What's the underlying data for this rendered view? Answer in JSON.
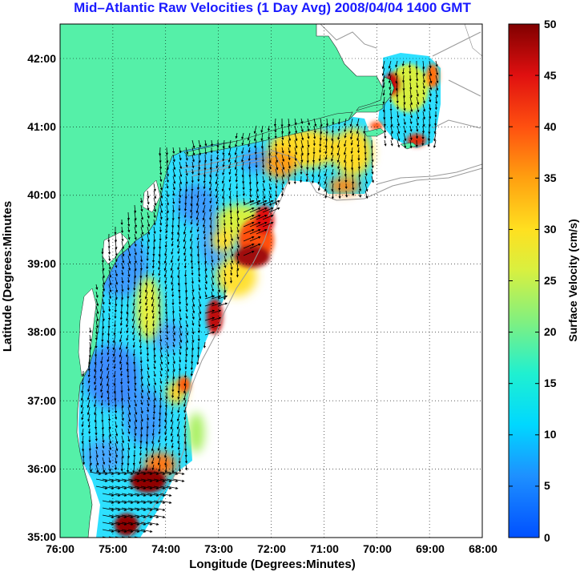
{
  "title": "Mid–Atlantic Raw Velocities (1 Day Avg) 2008/04/04 1400 GMT",
  "map": {
    "xlabel": "Longitude (Degrees:Minutes)",
    "ylabel": "Latitude (Degrees:Minutes",
    "x_ticks": [
      "76:00",
      "75:00",
      "74:00",
      "73:00",
      "72:00",
      "71:00",
      "70:00",
      "69:00",
      "68:00"
    ],
    "y_ticks": [
      "42:00",
      "41:00",
      "40:00",
      "39:00",
      "38:00",
      "37:00",
      "36:00",
      "35:00"
    ],
    "land_color": "#55f0a8",
    "ocean_color": "#ffffff",
    "grid": "dotted"
  },
  "colorbar": {
    "label": "Surface Velocity (cm/s)",
    "ticks": [
      "50",
      "45",
      "40",
      "35",
      "30",
      "25",
      "20",
      "15",
      "10",
      "5",
      "0"
    ],
    "min": 0,
    "max": 50,
    "colormap": "jet"
  }
}
